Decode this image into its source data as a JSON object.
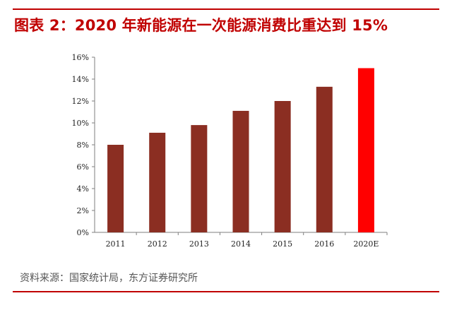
{
  "figure": {
    "title": "图表 2：2020 年新能源在一次能源消费比重达到 15%",
    "source": "资料来源：国家统计局，东方证券研究所"
  },
  "colors": {
    "accent": "#c00000",
    "bar": "#8b2e22",
    "highlight_bar": "#ff0000"
  },
  "chart_data": {
    "type": "bar",
    "title": "2020 年新能源在一次能源消费比重达到 15%",
    "xlabel": "",
    "ylabel": "",
    "categories": [
      "2011",
      "2012",
      "2013",
      "2014",
      "2015",
      "2016",
      "2020E"
    ],
    "values": [
      8.0,
      9.1,
      9.8,
      11.1,
      12.0,
      13.3,
      15.0
    ],
    "unit": "%",
    "ylim": [
      0,
      16
    ],
    "yticks": [
      0,
      2,
      4,
      6,
      8,
      10,
      12,
      14,
      16
    ],
    "ytick_labels": [
      "0%",
      "2%",
      "4%",
      "6%",
      "8%",
      "10%",
      "12%",
      "14%",
      "16%"
    ],
    "highlight_category": "2020E",
    "grid": false,
    "legend": "none"
  }
}
